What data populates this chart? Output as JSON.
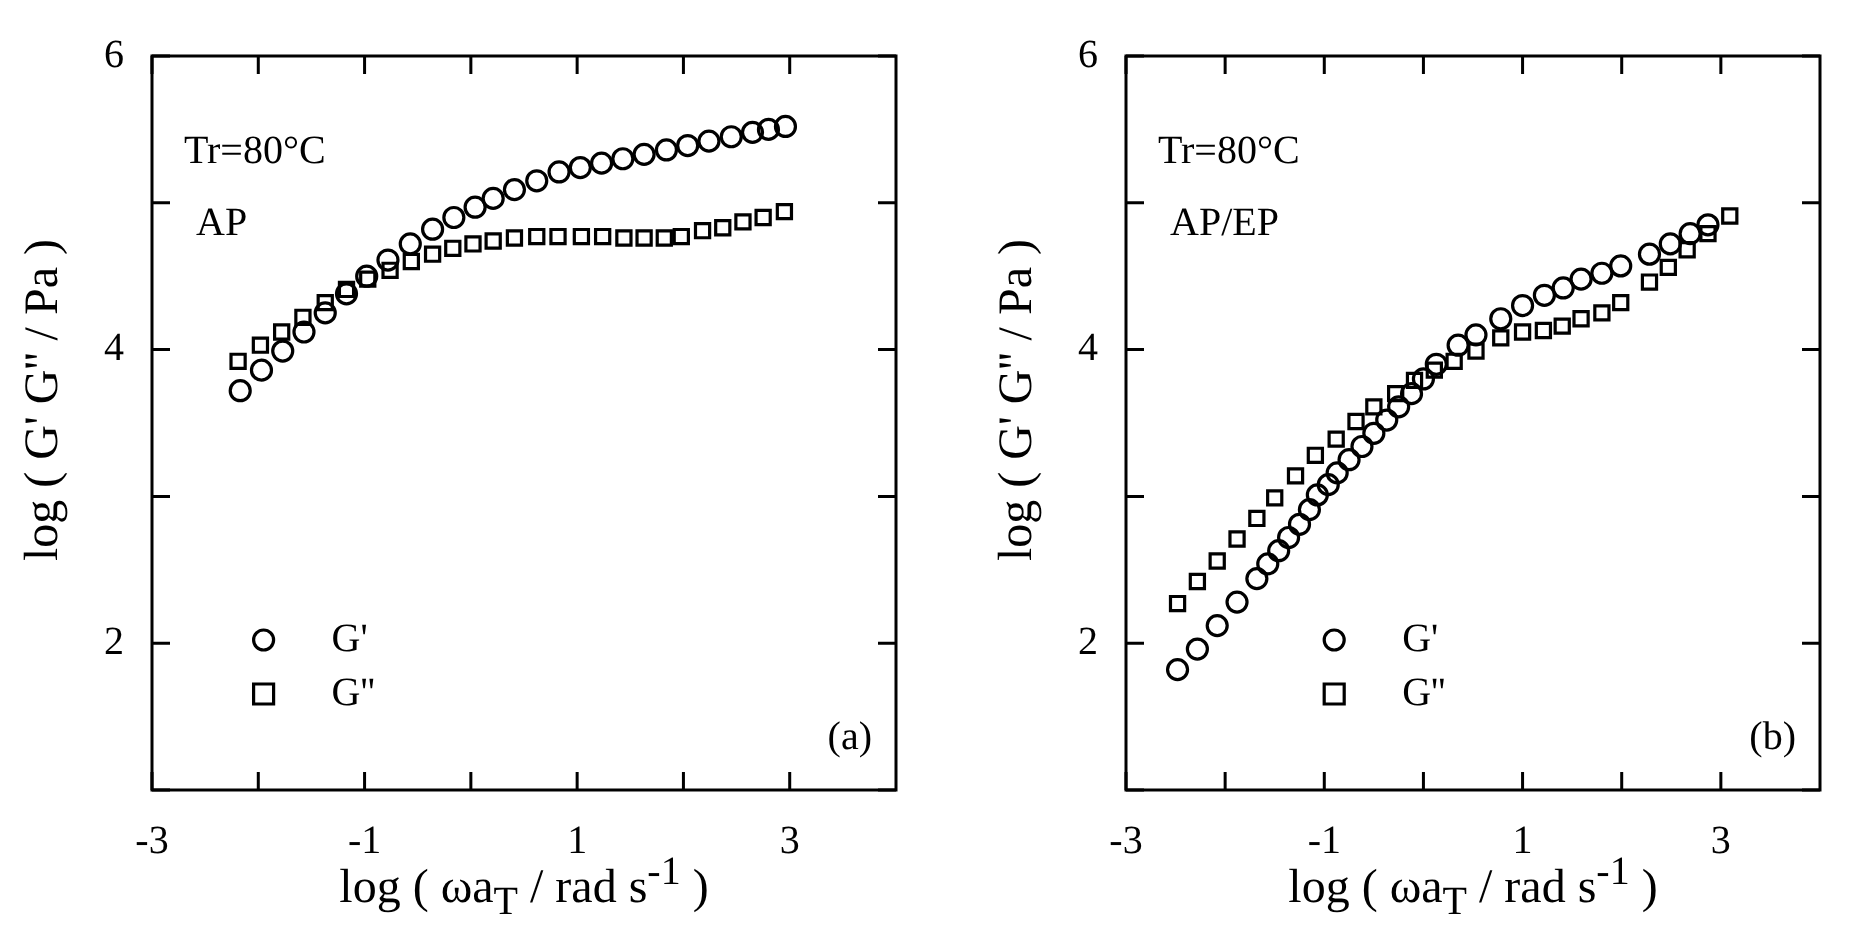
{
  "chart_data": [
    {
      "type": "scatter",
      "annotations": [
        "Tr=80°C",
        "AP",
        "(a)"
      ],
      "xlabel": "log ( ωa$_{T}$ / rad s$^{-1}$ )",
      "ylabel": "log ( G' G'' / Pa )",
      "xlim": [
        -3,
        4
      ],
      "ylim": [
        1,
        6
      ],
      "xticks": [
        -3,
        {
          "value": -2,
          "label": null
        },
        -1,
        {
          "value": 0,
          "label": null
        },
        1,
        {
          "value": 2,
          "label": null
        },
        3
      ],
      "yticks": [
        {
          "value": 1,
          "label": null
        },
        2,
        {
          "value": 3,
          "label": null
        },
        4,
        {
          "value": 5,
          "label": null
        },
        6
      ],
      "legend": "bottom left",
      "series": [
        {
          "name": "G'",
          "color": "#000000",
          "marker": "circle",
          "x": [
            -2.17,
            -1.97,
            -1.77,
            -1.57,
            -1.37,
            -1.17,
            -0.98,
            -0.78,
            -0.57,
            -0.36,
            -0.16,
            0.04,
            0.21,
            0.41,
            0.62,
            0.83,
            1.03,
            1.23,
            1.43,
            1.63,
            1.84,
            2.04,
            2.24,
            2.45,
            2.65,
            2.8,
            2.96
          ],
          "values": [
            3.72,
            3.86,
            3.99,
            4.12,
            4.25,
            4.38,
            4.5,
            4.61,
            4.72,
            4.82,
            4.9,
            4.97,
            5.03,
            5.09,
            5.15,
            5.21,
            5.24,
            5.27,
            5.3,
            5.33,
            5.36,
            5.39,
            5.42,
            5.45,
            5.48,
            5.5,
            5.52
          ]
        },
        {
          "name": "G''",
          "color": "#000000",
          "marker": "square",
          "x": [
            -2.19,
            -1.98,
            -1.78,
            -1.58,
            -1.37,
            -1.17,
            -0.97,
            -0.76,
            -0.56,
            -0.36,
            -0.17,
            0.02,
            0.21,
            0.41,
            0.62,
            0.82,
            1.04,
            1.24,
            1.44,
            1.63,
            1.82,
            1.98,
            2.18,
            2.37,
            2.56,
            2.75,
            2.95
          ],
          "values": [
            3.92,
            4.03,
            4.12,
            4.22,
            4.32,
            4.41,
            4.48,
            4.54,
            4.6,
            4.65,
            4.69,
            4.72,
            4.74,
            4.76,
            4.77,
            4.77,
            4.77,
            4.77,
            4.76,
            4.76,
            4.76,
            4.77,
            4.81,
            4.83,
            4.87,
            4.9,
            4.94
          ]
        }
      ]
    },
    {
      "type": "scatter",
      "annotations": [
        "Tr=80°C",
        "AP/EP",
        "(b)"
      ],
      "xlabel": "log ( ωa$_{T}$ / rad s$^{-1}$ )",
      "ylabel": "log ( G' G'' / Pa )",
      "xlim": [
        -3,
        4
      ],
      "ylim": [
        1,
        6
      ],
      "xticks": [
        -3,
        {
          "value": -2,
          "label": null
        },
        -1,
        {
          "value": 0,
          "label": null
        },
        1,
        {
          "value": 2,
          "label": null
        },
        3
      ],
      "yticks": [
        {
          "value": 1,
          "label": null
        },
        2,
        {
          "value": 3,
          "label": null
        },
        4,
        {
          "value": 5,
          "label": null
        },
        6
      ],
      "legend": "bottom",
      "series": [
        {
          "name": "G'",
          "color": "#000000",
          "marker": "circle",
          "x": [
            -2.48,
            -2.28,
            -2.08,
            -1.88,
            -1.68,
            -1.57,
            -1.46,
            -1.36,
            -1.25,
            -1.15,
            -1.07,
            -0.96,
            -0.87,
            -0.75,
            -0.62,
            -0.5,
            -0.37,
            -0.25,
            -0.12,
            0.0,
            0.13,
            0.35,
            0.53,
            0.78,
            1.0,
            1.22,
            1.41,
            1.59,
            1.8,
            1.99,
            2.28,
            2.49,
            2.69,
            2.87
          ],
          "values": [
            1.82,
            1.96,
            2.12,
            2.28,
            2.44,
            2.54,
            2.63,
            2.72,
            2.81,
            2.91,
            3.01,
            3.08,
            3.16,
            3.25,
            3.34,
            3.43,
            3.52,
            3.61,
            3.7,
            3.8,
            3.9,
            4.03,
            4.1,
            4.21,
            4.3,
            4.37,
            4.42,
            4.48,
            4.52,
            4.57,
            4.65,
            4.72,
            4.79,
            4.85
          ]
        },
        {
          "name": "G''",
          "color": "#000000",
          "marker": "square",
          "x": [
            -2.48,
            -2.28,
            -2.08,
            -1.88,
            -1.68,
            -1.5,
            -1.29,
            -1.09,
            -0.88,
            -0.68,
            -0.5,
            -0.28,
            -0.09,
            0.11,
            0.31,
            0.53,
            0.78,
            1.0,
            1.21,
            1.4,
            1.59,
            1.8,
            1.99,
            2.28,
            2.47,
            2.66,
            2.87,
            3.09
          ],
          "values": [
            2.27,
            2.42,
            2.56,
            2.71,
            2.85,
            2.99,
            3.14,
            3.28,
            3.39,
            3.51,
            3.61,
            3.7,
            3.79,
            3.86,
            3.92,
            3.99,
            4.08,
            4.12,
            4.13,
            4.16,
            4.21,
            4.25,
            4.32,
            4.46,
            4.56,
            4.68,
            4.79,
            4.91
          ]
        }
      ]
    }
  ]
}
